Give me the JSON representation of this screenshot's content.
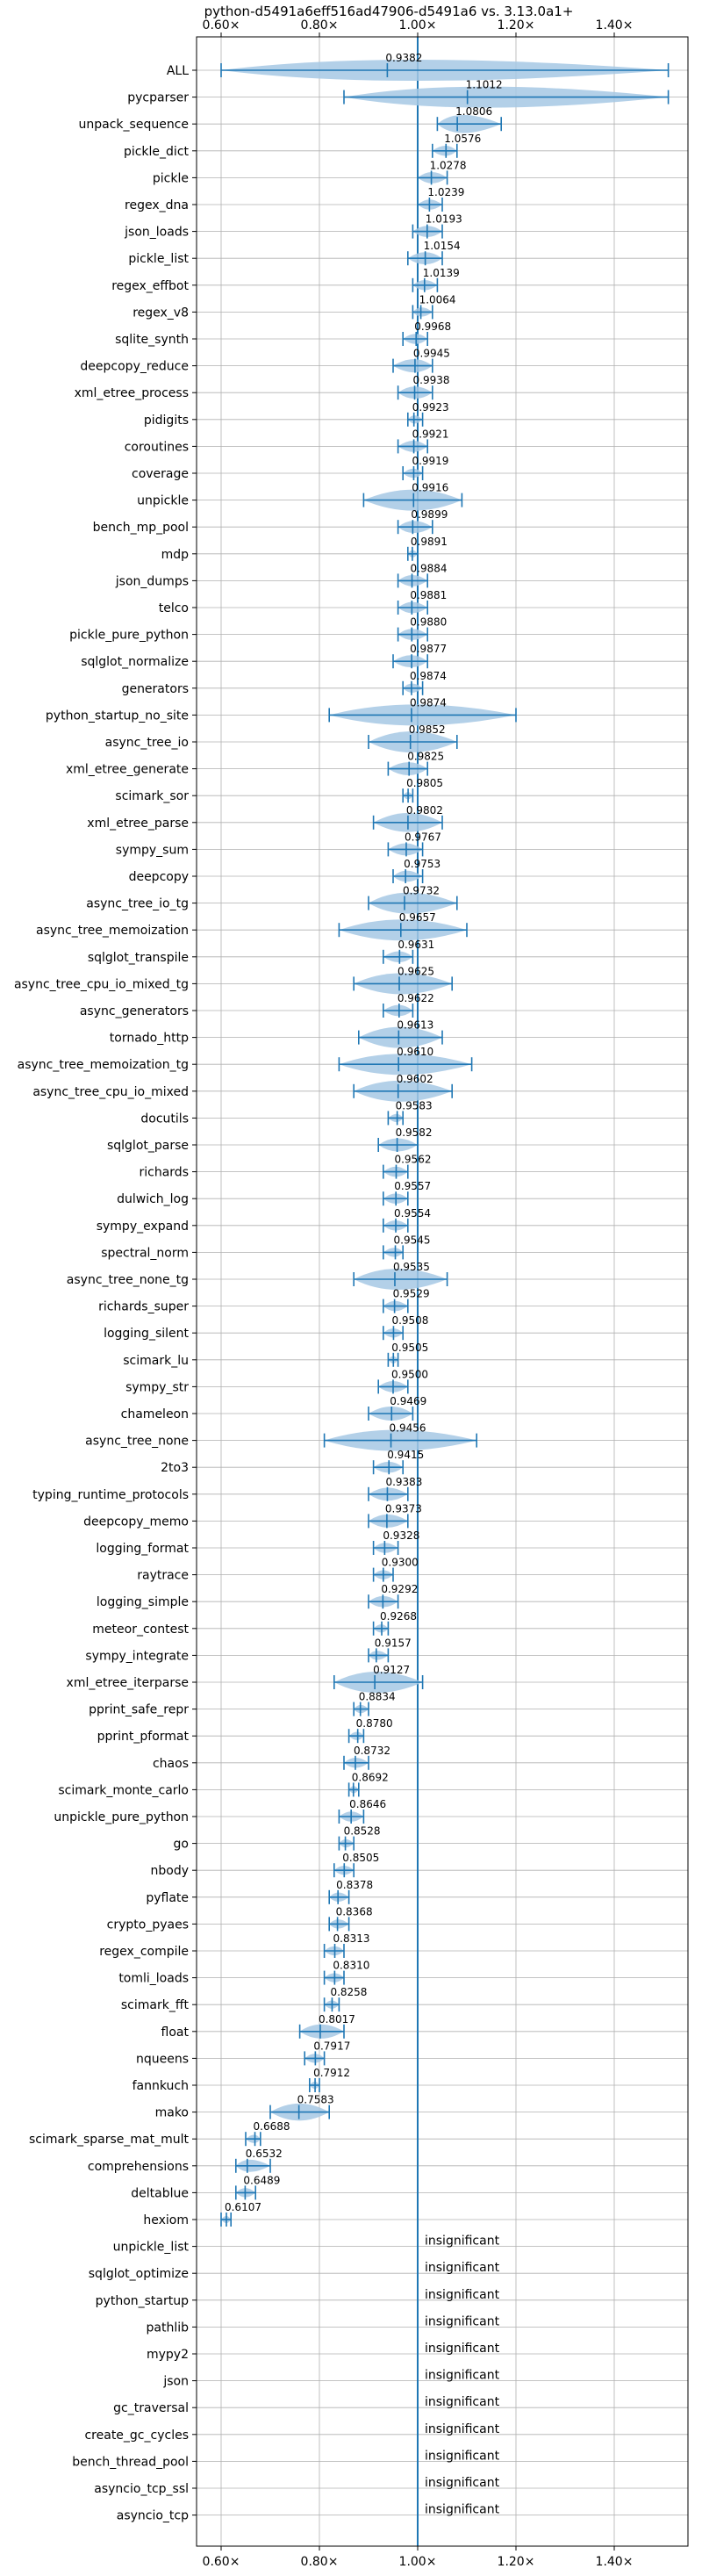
{
  "chart_data": {
    "type": "violin",
    "title": "python-d5491a6eff516ad47906-d5491a6 vs. 3.13.0a1+",
    "xlim": [
      0.55,
      1.55
    ],
    "xticks": [
      0.6,
      0.8,
      1.0,
      1.2,
      1.4
    ],
    "xtick_labels": [
      "0.60×",
      "0.80×",
      "1.00×",
      "1.20×",
      "1.40×"
    ],
    "reference_line": 1.0,
    "grid": true,
    "colors": {
      "violin": "#a6c8e4",
      "line": "#1f77b4",
      "grid": "#b0b0b0",
      "text": "#000000"
    },
    "insignificant_label": "insignificant",
    "benchmarks": [
      {
        "name": "ALL",
        "mean": 0.9382,
        "lo": 0.6,
        "hi": 1.51
      },
      {
        "name": "pycparser",
        "mean": 1.1012,
        "lo": 0.85,
        "hi": 1.51
      },
      {
        "name": "unpack_sequence",
        "mean": 1.0806,
        "lo": 1.04,
        "hi": 1.17
      },
      {
        "name": "pickle_dict",
        "mean": 1.0576,
        "lo": 1.03,
        "hi": 1.08
      },
      {
        "name": "pickle",
        "mean": 1.0278,
        "lo": 1.0,
        "hi": 1.06
      },
      {
        "name": "regex_dna",
        "mean": 1.0239,
        "lo": 1.0,
        "hi": 1.05
      },
      {
        "name": "json_loads",
        "mean": 1.0193,
        "lo": 0.99,
        "hi": 1.05
      },
      {
        "name": "pickle_list",
        "mean": 1.0154,
        "lo": 0.98,
        "hi": 1.05
      },
      {
        "name": "regex_effbot",
        "mean": 1.0139,
        "lo": 0.99,
        "hi": 1.04
      },
      {
        "name": "regex_v8",
        "mean": 1.0064,
        "lo": 0.99,
        "hi": 1.03
      },
      {
        "name": "sqlite_synth",
        "mean": 0.9968,
        "lo": 0.97,
        "hi": 1.02
      },
      {
        "name": "deepcopy_reduce",
        "mean": 0.9945,
        "lo": 0.95,
        "hi": 1.03
      },
      {
        "name": "xml_etree_process",
        "mean": 0.9938,
        "lo": 0.96,
        "hi": 1.03
      },
      {
        "name": "pidigits",
        "mean": 0.9923,
        "lo": 0.98,
        "hi": 1.01
      },
      {
        "name": "coroutines",
        "mean": 0.9921,
        "lo": 0.96,
        "hi": 1.02
      },
      {
        "name": "coverage",
        "mean": 0.9919,
        "lo": 0.97,
        "hi": 1.01
      },
      {
        "name": "unpickle",
        "mean": 0.9916,
        "lo": 0.89,
        "hi": 1.09
      },
      {
        "name": "bench_mp_pool",
        "mean": 0.9899,
        "lo": 0.96,
        "hi": 1.03
      },
      {
        "name": "mdp",
        "mean": 0.9891,
        "lo": 0.98,
        "hi": 1.0
      },
      {
        "name": "json_dumps",
        "mean": 0.9884,
        "lo": 0.96,
        "hi": 1.02
      },
      {
        "name": "telco",
        "mean": 0.9881,
        "lo": 0.96,
        "hi": 1.02
      },
      {
        "name": "pickle_pure_python",
        "mean": 0.988,
        "lo": 0.96,
        "hi": 1.02
      },
      {
        "name": "sqlglot_normalize",
        "mean": 0.9877,
        "lo": 0.95,
        "hi": 1.02
      },
      {
        "name": "generators",
        "mean": 0.9874,
        "lo": 0.97,
        "hi": 1.01
      },
      {
        "name": "python_startup_no_site",
        "mean": 0.9874,
        "lo": 0.82,
        "hi": 1.2
      },
      {
        "name": "async_tree_io",
        "mean": 0.9852,
        "lo": 0.9,
        "hi": 1.08
      },
      {
        "name": "xml_etree_generate",
        "mean": 0.9825,
        "lo": 0.94,
        "hi": 1.02
      },
      {
        "name": "scimark_sor",
        "mean": 0.9805,
        "lo": 0.97,
        "hi": 0.99
      },
      {
        "name": "xml_etree_parse",
        "mean": 0.9802,
        "lo": 0.91,
        "hi": 1.05
      },
      {
        "name": "sympy_sum",
        "mean": 0.9767,
        "lo": 0.94,
        "hi": 1.01
      },
      {
        "name": "deepcopy",
        "mean": 0.9753,
        "lo": 0.95,
        "hi": 1.01
      },
      {
        "name": "async_tree_io_tg",
        "mean": 0.9732,
        "lo": 0.9,
        "hi": 1.08
      },
      {
        "name": "async_tree_memoization",
        "mean": 0.9657,
        "lo": 0.84,
        "hi": 1.1
      },
      {
        "name": "sqlglot_transpile",
        "mean": 0.9631,
        "lo": 0.93,
        "hi": 0.99
      },
      {
        "name": "async_tree_cpu_io_mixed_tg",
        "mean": 0.9625,
        "lo": 0.87,
        "hi": 1.07
      },
      {
        "name": "async_generators",
        "mean": 0.9622,
        "lo": 0.93,
        "hi": 0.99
      },
      {
        "name": "tornado_http",
        "mean": 0.9613,
        "lo": 0.88,
        "hi": 1.05
      },
      {
        "name": "async_tree_memoization_tg",
        "mean": 0.961,
        "lo": 0.84,
        "hi": 1.11
      },
      {
        "name": "async_tree_cpu_io_mixed",
        "mean": 0.9602,
        "lo": 0.87,
        "hi": 1.07
      },
      {
        "name": "docutils",
        "mean": 0.9583,
        "lo": 0.94,
        "hi": 0.97
      },
      {
        "name": "sqlglot_parse",
        "mean": 0.9582,
        "lo": 0.92,
        "hi": 1.0
      },
      {
        "name": "richards",
        "mean": 0.9562,
        "lo": 0.93,
        "hi": 0.98
      },
      {
        "name": "dulwich_log",
        "mean": 0.9557,
        "lo": 0.93,
        "hi": 0.98
      },
      {
        "name": "sympy_expand",
        "mean": 0.9554,
        "lo": 0.93,
        "hi": 0.98
      },
      {
        "name": "spectral_norm",
        "mean": 0.9545,
        "lo": 0.93,
        "hi": 0.97
      },
      {
        "name": "async_tree_none_tg",
        "mean": 0.9535,
        "lo": 0.87,
        "hi": 1.06
      },
      {
        "name": "richards_super",
        "mean": 0.9529,
        "lo": 0.93,
        "hi": 0.98
      },
      {
        "name": "logging_silent",
        "mean": 0.9508,
        "lo": 0.93,
        "hi": 0.97
      },
      {
        "name": "scimark_lu",
        "mean": 0.9505,
        "lo": 0.94,
        "hi": 0.96
      },
      {
        "name": "sympy_str",
        "mean": 0.95,
        "lo": 0.92,
        "hi": 0.98
      },
      {
        "name": "chameleon",
        "mean": 0.9469,
        "lo": 0.9,
        "hi": 0.99
      },
      {
        "name": "async_tree_none",
        "mean": 0.9456,
        "lo": 0.81,
        "hi": 1.12
      },
      {
        "name": "2to3",
        "mean": 0.9415,
        "lo": 0.91,
        "hi": 0.97
      },
      {
        "name": "typing_runtime_protocols",
        "mean": 0.9383,
        "lo": 0.9,
        "hi": 0.98
      },
      {
        "name": "deepcopy_memo",
        "mean": 0.9373,
        "lo": 0.9,
        "hi": 0.98
      },
      {
        "name": "logging_format",
        "mean": 0.9328,
        "lo": 0.91,
        "hi": 0.96
      },
      {
        "name": "raytrace",
        "mean": 0.93,
        "lo": 0.91,
        "hi": 0.95
      },
      {
        "name": "logging_simple",
        "mean": 0.9292,
        "lo": 0.9,
        "hi": 0.96
      },
      {
        "name": "meteor_contest",
        "mean": 0.9268,
        "lo": 0.91,
        "hi": 0.94
      },
      {
        "name": "sympy_integrate",
        "mean": 0.9157,
        "lo": 0.9,
        "hi": 0.94
      },
      {
        "name": "xml_etree_iterparse",
        "mean": 0.9127,
        "lo": 0.83,
        "hi": 1.01
      },
      {
        "name": "pprint_safe_repr",
        "mean": 0.8834,
        "lo": 0.87,
        "hi": 0.9
      },
      {
        "name": "pprint_pformat",
        "mean": 0.878,
        "lo": 0.86,
        "hi": 0.89
      },
      {
        "name": "chaos",
        "mean": 0.8732,
        "lo": 0.85,
        "hi": 0.9
      },
      {
        "name": "scimark_monte_carlo",
        "mean": 0.8692,
        "lo": 0.86,
        "hi": 0.88
      },
      {
        "name": "unpickle_pure_python",
        "mean": 0.8646,
        "lo": 0.84,
        "hi": 0.89
      },
      {
        "name": "go",
        "mean": 0.8528,
        "lo": 0.84,
        "hi": 0.87
      },
      {
        "name": "nbody",
        "mean": 0.8505,
        "lo": 0.83,
        "hi": 0.87
      },
      {
        "name": "pyflate",
        "mean": 0.8378,
        "lo": 0.82,
        "hi": 0.86
      },
      {
        "name": "crypto_pyaes",
        "mean": 0.8368,
        "lo": 0.82,
        "hi": 0.86
      },
      {
        "name": "regex_compile",
        "mean": 0.8313,
        "lo": 0.81,
        "hi": 0.85
      },
      {
        "name": "tomli_loads",
        "mean": 0.831,
        "lo": 0.81,
        "hi": 0.85
      },
      {
        "name": "scimark_fft",
        "mean": 0.8258,
        "lo": 0.81,
        "hi": 0.84
      },
      {
        "name": "float",
        "mean": 0.8017,
        "lo": 0.76,
        "hi": 0.85
      },
      {
        "name": "nqueens",
        "mean": 0.7917,
        "lo": 0.77,
        "hi": 0.81
      },
      {
        "name": "fannkuch",
        "mean": 0.7912,
        "lo": 0.78,
        "hi": 0.8
      },
      {
        "name": "mako",
        "mean": 0.7583,
        "lo": 0.7,
        "hi": 0.82
      },
      {
        "name": "scimark_sparse_mat_mult",
        "mean": 0.6688,
        "lo": 0.65,
        "hi": 0.68
      },
      {
        "name": "comprehensions",
        "mean": 0.6532,
        "lo": 0.63,
        "hi": 0.7
      },
      {
        "name": "deltablue",
        "mean": 0.6489,
        "lo": 0.63,
        "hi": 0.67
      },
      {
        "name": "hexiom",
        "mean": 0.6107,
        "lo": 0.6,
        "hi": 0.62
      },
      {
        "name": "unpickle_list",
        "insignificant": true
      },
      {
        "name": "sqlglot_optimize",
        "insignificant": true
      },
      {
        "name": "python_startup",
        "insignificant": true
      },
      {
        "name": "pathlib",
        "insignificant": true
      },
      {
        "name": "mypy2",
        "insignificant": true
      },
      {
        "name": "json",
        "insignificant": true
      },
      {
        "name": "gc_traversal",
        "insignificant": true
      },
      {
        "name": "create_gc_cycles",
        "insignificant": true
      },
      {
        "name": "bench_thread_pool",
        "insignificant": true
      },
      {
        "name": "asyncio_tcp_ssl",
        "insignificant": true
      },
      {
        "name": "asyncio_tcp",
        "insignificant": true
      }
    ]
  }
}
